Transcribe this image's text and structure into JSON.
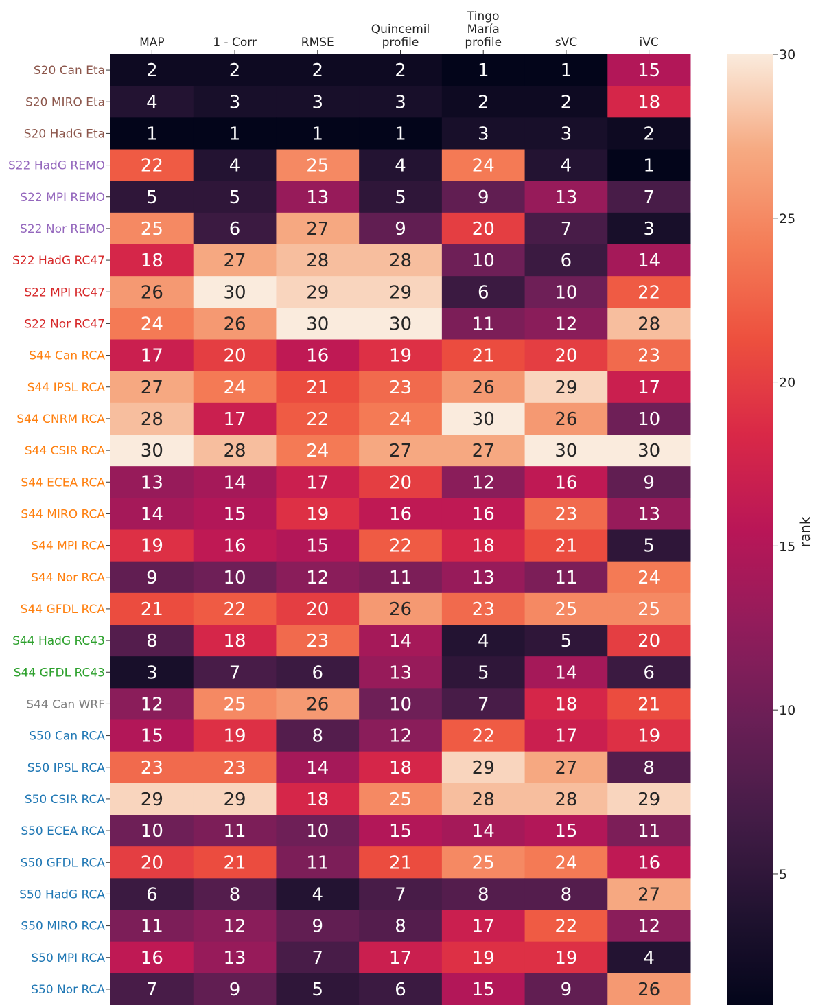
{
  "chart_data": {
    "type": "heatmap",
    "columns": [
      "MAP",
      "1 - Corr",
      "RMSE",
      "Quincemil\nprofile",
      "Tingo\nMaría\nprofile",
      "sVC",
      "iVC"
    ],
    "rows": [
      "S20 Can Eta",
      "S20 MIRO Eta",
      "S20 HadG Eta",
      "S22 HadG REMO",
      "S22 MPI REMO",
      "S22 Nor REMO",
      "S22 HadG RC47",
      "S22 MPI RC47",
      "S22 Nor RC47",
      "S44 Can RCA",
      "S44 IPSL RCA",
      "S44 CNRM RCA",
      "S44 CSIR RCA",
      "S44 ECEA RCA",
      "S44 MIRO RCA",
      "S44 MPI RCA",
      "S44 Nor RCA",
      "S44 GFDL RCA",
      "S44 HadG RC43",
      "S44 GFDL RC43",
      "S44 Can WRF",
      "S50 Can RCA",
      "S50 IPSL RCA",
      "S50 CSIR RCA",
      "S50 ECEA RCA",
      "S50 GFDL RCA",
      "S50 HadG RCA",
      "S50 MIRO RCA",
      "S50 MPI RCA",
      "S50 Nor RCA"
    ],
    "row_label_colors": [
      "#8c564b",
      "#8c564b",
      "#8c564b",
      "#9467bd",
      "#9467bd",
      "#9467bd",
      "#d62728",
      "#d62728",
      "#d62728",
      "#ff7f0e",
      "#ff7f0e",
      "#ff7f0e",
      "#ff7f0e",
      "#ff7f0e",
      "#ff7f0e",
      "#ff7f0e",
      "#ff7f0e",
      "#ff7f0e",
      "#2ca02c",
      "#2ca02c",
      "#7f7f7f",
      "#1f77b4",
      "#1f77b4",
      "#1f77b4",
      "#1f77b4",
      "#1f77b4",
      "#1f77b4",
      "#1f77b4",
      "#1f77b4",
      "#1f77b4"
    ],
    "values": [
      [
        2,
        2,
        2,
        2,
        1,
        1,
        15
      ],
      [
        4,
        3,
        3,
        3,
        2,
        2,
        18
      ],
      [
        1,
        1,
        1,
        1,
        3,
        3,
        2
      ],
      [
        22,
        4,
        25,
        4,
        24,
        4,
        1
      ],
      [
        5,
        5,
        13,
        5,
        9,
        13,
        7
      ],
      [
        25,
        6,
        27,
        9,
        20,
        7,
        3
      ],
      [
        18,
        27,
        28,
        28,
        10,
        6,
        14
      ],
      [
        26,
        30,
        29,
        29,
        6,
        10,
        22
      ],
      [
        24,
        26,
        30,
        30,
        11,
        12,
        28
      ],
      [
        17,
        20,
        16,
        19,
        21,
        20,
        23
      ],
      [
        27,
        24,
        21,
        23,
        26,
        29,
        17
      ],
      [
        28,
        17,
        22,
        24,
        30,
        26,
        10
      ],
      [
        30,
        28,
        24,
        27,
        27,
        30,
        30
      ],
      [
        13,
        14,
        17,
        20,
        12,
        16,
        9
      ],
      [
        14,
        15,
        19,
        16,
        16,
        23,
        13
      ],
      [
        19,
        16,
        15,
        22,
        18,
        21,
        5
      ],
      [
        9,
        10,
        12,
        11,
        13,
        11,
        24
      ],
      [
        21,
        22,
        20,
        26,
        23,
        25,
        25
      ],
      [
        8,
        18,
        23,
        14,
        4,
        5,
        20
      ],
      [
        3,
        7,
        6,
        13,
        5,
        14,
        6
      ],
      [
        12,
        25,
        26,
        10,
        7,
        18,
        21
      ],
      [
        15,
        19,
        8,
        12,
        22,
        17,
        19
      ],
      [
        23,
        23,
        14,
        18,
        29,
        27,
        8
      ],
      [
        29,
        29,
        18,
        25,
        28,
        28,
        29
      ],
      [
        10,
        11,
        10,
        15,
        14,
        15,
        11
      ],
      [
        20,
        21,
        11,
        21,
        25,
        24,
        16
      ],
      [
        6,
        8,
        4,
        7,
        8,
        8,
        27
      ],
      [
        11,
        12,
        9,
        8,
        17,
        22,
        12
      ],
      [
        16,
        13,
        7,
        17,
        19,
        19,
        4
      ],
      [
        7,
        9,
        5,
        6,
        15,
        9,
        26
      ]
    ],
    "colormap": "rocket",
    "vlim": [
      1,
      30
    ],
    "colorbar_ticks": [
      5,
      10,
      15,
      20,
      25,
      30
    ],
    "colorbar_label": "rank"
  }
}
